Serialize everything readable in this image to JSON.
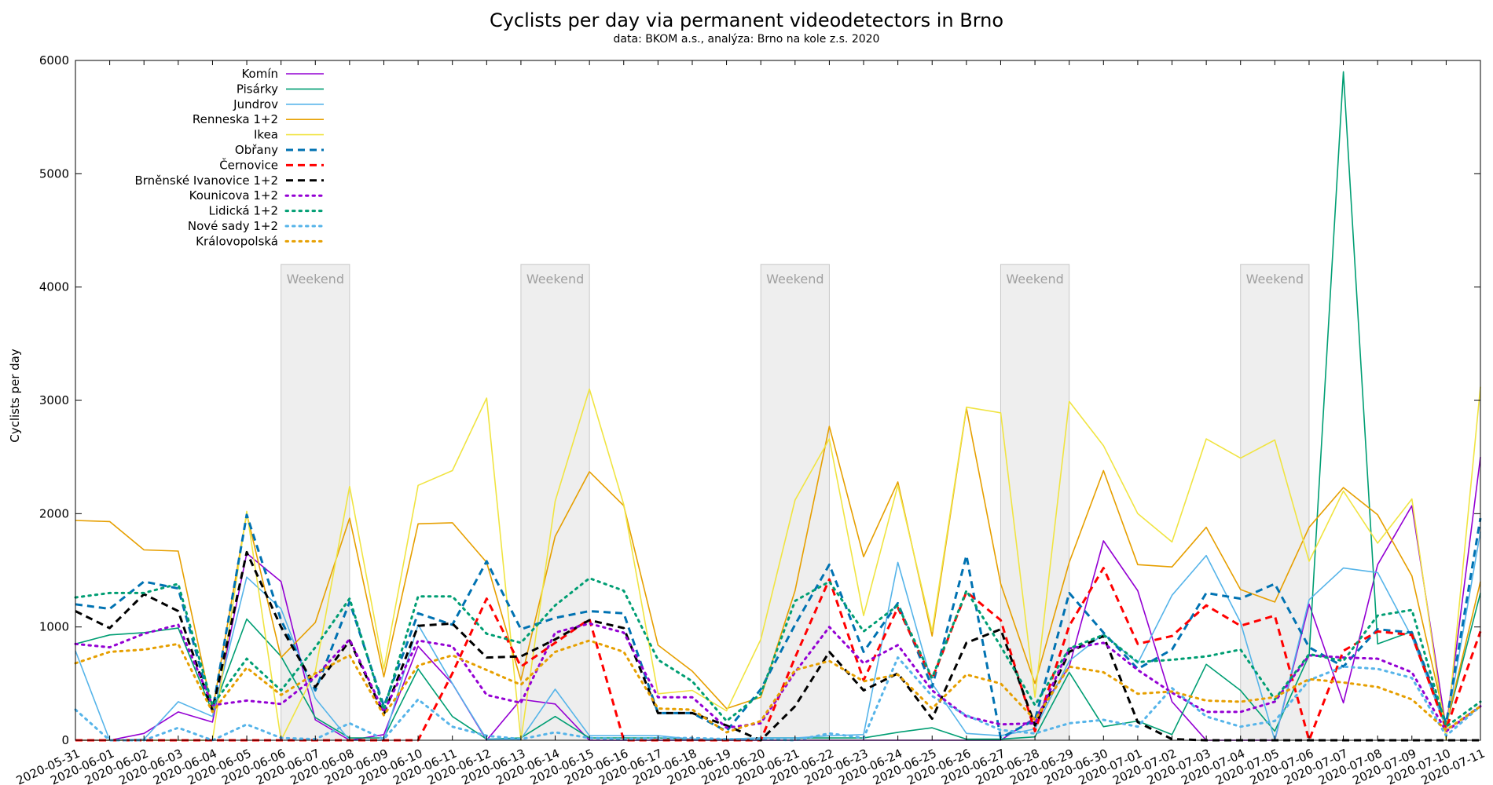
{
  "chart_data": {
    "type": "line",
    "title": "Cyclists per day via permanent videodetectors in Brno",
    "subtitle": "data: BKOM a.s., analýza: Brno na kole z.s. 2020",
    "xlabel": "",
    "ylabel": "Cyclists per day",
    "ylim": [
      0,
      6000
    ],
    "yticks": [
      0,
      1000,
      2000,
      3000,
      4000,
      5000,
      6000
    ],
    "grid": false,
    "legend_position": "top-left",
    "x": [
      "2020-05-31",
      "2020-06-01",
      "2020-06-02",
      "2020-06-03",
      "2020-06-04",
      "2020-06-05",
      "2020-06-06",
      "2020-06-07",
      "2020-06-08",
      "2020-06-09",
      "2020-06-10",
      "2020-06-11",
      "2020-06-12",
      "2020-06-13",
      "2020-06-14",
      "2020-06-15",
      "2020-06-16",
      "2020-06-17",
      "2020-06-18",
      "2020-06-19",
      "2020-06-20",
      "2020-06-21",
      "2020-06-22",
      "2020-06-23",
      "2020-06-24",
      "2020-06-25",
      "2020-06-26",
      "2020-06-27",
      "2020-06-28",
      "2020-06-29",
      "2020-06-30",
      "2020-07-01",
      "2020-07-02",
      "2020-07-03",
      "2020-07-04",
      "2020-07-05",
      "2020-07-06",
      "2020-07-07",
      "2020-07-08",
      "2020-07-09",
      "2020-07-10",
      "2020-07-11"
    ],
    "weekend_label": "Weekend",
    "weekend_top": 4200,
    "weekends": [
      [
        "2020-06-06",
        "2020-06-08"
      ],
      [
        "2020-06-13",
        "2020-06-15"
      ],
      [
        "2020-06-20",
        "2020-06-22"
      ],
      [
        "2020-06-27",
        "2020-06-29"
      ],
      [
        "2020-07-04",
        "2020-07-06"
      ]
    ],
    "series": [
      {
        "name": "Komín",
        "color": "#9400d3",
        "dash": "solid",
        "values": [
          0,
          0,
          60,
          250,
          160,
          1650,
          1400,
          180,
          0,
          50,
          830,
          500,
          0,
          360,
          320,
          0,
          0,
          0,
          0,
          0,
          0,
          0,
          0,
          0,
          0,
          0,
          0,
          0,
          200,
          650,
          1760,
          1320,
          340,
          0,
          0,
          0,
          1200,
          330,
          1550,
          2070,
          100,
          2500
        ]
      },
      {
        "name": "Pisárky",
        "color": "#009e73",
        "dash": "solid",
        "values": [
          850,
          930,
          950,
          990,
          250,
          1070,
          740,
          200,
          20,
          20,
          630,
          210,
          10,
          20,
          210,
          20,
          20,
          20,
          10,
          10,
          20,
          20,
          20,
          20,
          70,
          110,
          10,
          10,
          30,
          600,
          120,
          170,
          50,
          670,
          440,
          80,
          750,
          5900,
          850,
          960,
          130,
          1300
        ]
      },
      {
        "name": "Jundrov",
        "color": "#56b4e9",
        "dash": "solid",
        "values": [
          790,
          0,
          10,
          340,
          210,
          1440,
          1160,
          370,
          0,
          0,
          1020,
          500,
          10,
          10,
          450,
          40,
          40,
          40,
          10,
          10,
          20,
          20,
          40,
          50,
          1570,
          500,
          60,
          40,
          100,
          700,
          940,
          680,
          1280,
          1630,
          1040,
          0,
          1240,
          1520,
          1480,
          910,
          100,
          1840
        ]
      },
      {
        "name": "Renneska 1+2",
        "color": "#e69f00",
        "dash": "solid",
        "values": [
          1940,
          1930,
          1680,
          1670,
          260,
          2000,
          730,
          1040,
          1960,
          560,
          1910,
          1920,
          1570,
          530,
          1800,
          2370,
          2070,
          840,
          610,
          280,
          380,
          1320,
          2770,
          1620,
          2280,
          920,
          2930,
          1380,
          500,
          1570,
          2380,
          1550,
          1530,
          1880,
          1330,
          1220,
          1880,
          2230,
          1990,
          1450,
          130,
          1400
        ]
      },
      {
        "name": "Ikea",
        "color": "#f0e442",
        "dash": "solid",
        "values": [
          0,
          0,
          0,
          0,
          0,
          2020,
          0,
          610,
          2240,
          630,
          2250,
          2380,
          3020,
          0,
          2110,
          3100,
          2080,
          410,
          440,
          260,
          890,
          2120,
          2660,
          1100,
          2250,
          960,
          2940,
          2890,
          380,
          2990,
          2600,
          2000,
          1750,
          2660,
          2490,
          2650,
          1580,
          2200,
          1740,
          2130,
          0,
          3120
        ]
      },
      {
        "name": "Obřany",
        "color": "#0072b2",
        "dash": "dashed",
        "values": [
          1200,
          1160,
          1400,
          1340,
          260,
          1990,
          1060,
          440,
          1220,
          300,
          1120,
          1020,
          1580,
          980,
          1080,
          1140,
          1120,
          240,
          240,
          80,
          450,
          1020,
          1550,
          780,
          1210,
          470,
          1630,
          20,
          180,
          1300,
          950,
          630,
          800,
          1300,
          1250,
          1380,
          820,
          650,
          980,
          950,
          150,
          1960
        ]
      },
      {
        "name": "Černovice",
        "color": "#ff0000",
        "dash": "dashed",
        "values": [
          0,
          0,
          0,
          0,
          0,
          0,
          0,
          0,
          0,
          0,
          0,
          590,
          1250,
          650,
          860,
          1070,
          0,
          0,
          0,
          0,
          0,
          730,
          1420,
          530,
          1170,
          540,
          1310,
          1060,
          80,
          1010,
          1520,
          850,
          920,
          1190,
          1010,
          1100,
          0,
          790,
          960,
          930,
          100,
          960
        ]
      },
      {
        "name": "Brněnské Ivanovice 1+2",
        "color": "#000000",
        "dash": "dashed",
        "values": [
          1140,
          990,
          1290,
          1140,
          260,
          1660,
          1000,
          470,
          880,
          230,
          1010,
          1030,
          730,
          740,
          890,
          1060,
          990,
          240,
          240,
          130,
          0,
          300,
          780,
          440,
          590,
          190,
          860,
          980,
          130,
          780,
          920,
          160,
          10,
          0,
          0,
          0,
          0,
          0,
          0,
          0,
          0,
          0
        ]
      },
      {
        "name": "Kounicova 1+2",
        "color": "#9400d3",
        "dash": "dotted",
        "values": [
          850,
          820,
          940,
          1020,
          310,
          350,
          320,
          560,
          890,
          250,
          880,
          830,
          400,
          330,
          950,
          1030,
          950,
          380,
          380,
          110,
          150,
          600,
          1000,
          680,
          840,
          440,
          210,
          140,
          150,
          810,
          860,
          620,
          420,
          250,
          250,
          340,
          750,
          730,
          720,
          600,
          80,
          300
        ]
      },
      {
        "name": "Lidická 1+2",
        "color": "#009e73",
        "dash": "dotted",
        "values": [
          1260,
          1300,
          1300,
          1380,
          310,
          720,
          440,
          820,
          1250,
          270,
          1270,
          1270,
          940,
          860,
          1190,
          1430,
          1320,
          710,
          520,
          170,
          410,
          1230,
          1400,
          960,
          1190,
          550,
          1320,
          830,
          310,
          810,
          930,
          690,
          710,
          740,
          800,
          360,
          760,
          700,
          1100,
          1150,
          120,
          340
        ]
      },
      {
        "name": "Nové sady 1+2",
        "color": "#56b4e9",
        "dash": "dotted",
        "values": [
          270,
          0,
          0,
          110,
          0,
          140,
          20,
          10,
          150,
          10,
          360,
          120,
          40,
          10,
          70,
          20,
          10,
          20,
          20,
          10,
          10,
          0,
          60,
          20,
          730,
          390,
          220,
          90,
          60,
          150,
          180,
          120,
          460,
          210,
          120,
          170,
          530,
          650,
          630,
          550,
          40,
          300
        ]
      },
      {
        "name": "Královopolská",
        "color": "#e69f00",
        "dash": "dotted",
        "values": [
          680,
          780,
          800,
          850,
          250,
          640,
          400,
          590,
          750,
          220,
          660,
          750,
          620,
          490,
          780,
          880,
          780,
          280,
          270,
          70,
          170,
          620,
          700,
          520,
          580,
          280,
          580,
          500,
          180,
          650,
          600,
          410,
          430,
          350,
          340,
          380,
          540,
          510,
          470,
          360,
          90,
          300
        ]
      }
    ]
  }
}
